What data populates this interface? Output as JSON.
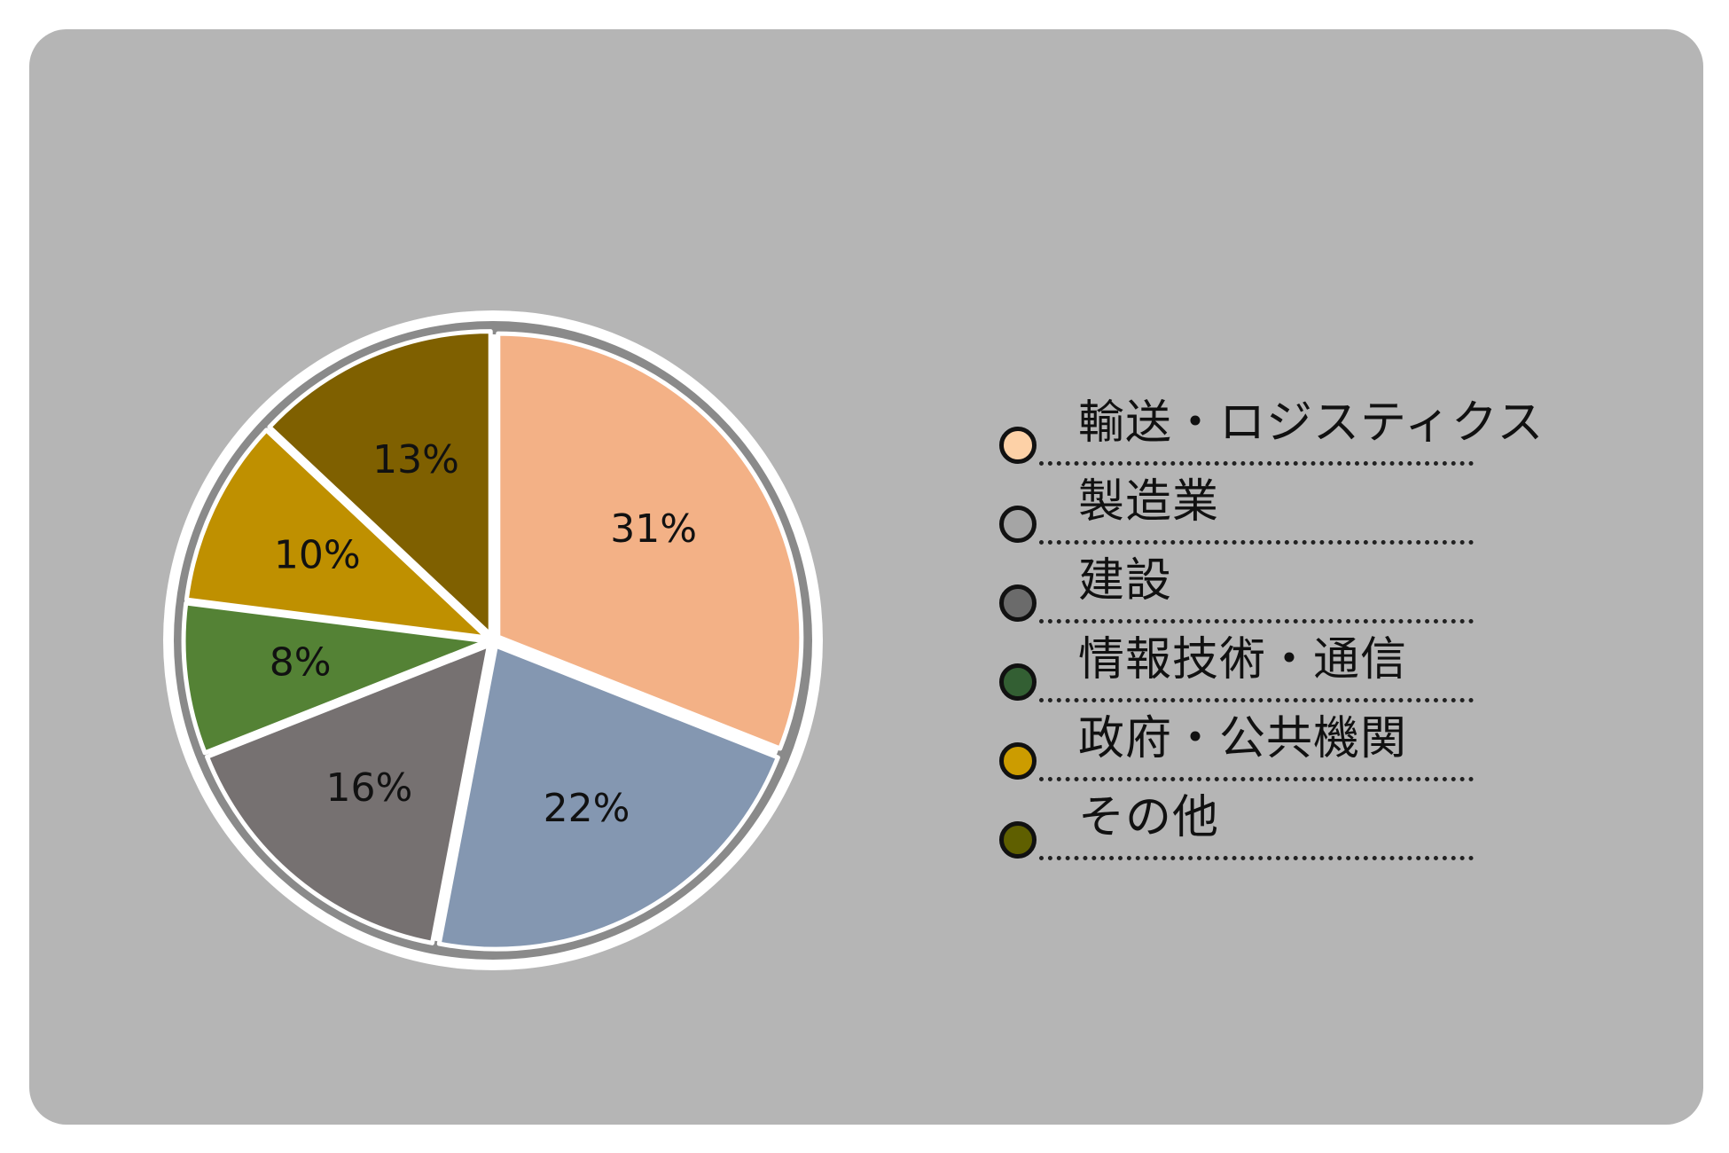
{
  "chart_data": {
    "type": "pie",
    "categories": [
      "輸送・ロジスティクス",
      "製造業",
      "建設",
      "情報技術・通信",
      "政府・公共機関",
      "その他"
    ],
    "values": [
      31,
      22,
      16,
      8,
      10,
      13
    ],
    "value_labels": [
      "31%",
      "22%",
      "16%",
      "8%",
      "10%",
      "13%"
    ],
    "slice_colors": [
      "#f3b186",
      "#8497b1",
      "#767171",
      "#548235",
      "#bf9000",
      "#7f6000"
    ],
    "legend_colors": [
      "#fdd1a7",
      "#a5a5a5",
      "#6b6b6b",
      "#335f33",
      "#cc9c00",
      "#5f5f00"
    ],
    "start_angle_deg": 0,
    "direction": "clockwise",
    "legend_position": "right"
  }
}
